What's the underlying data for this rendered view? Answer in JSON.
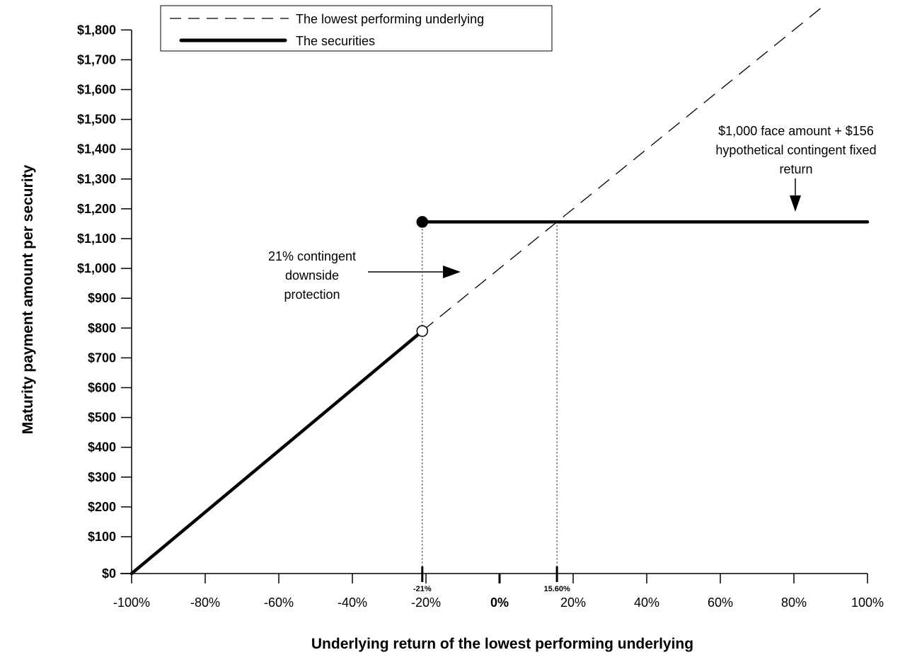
{
  "chart_data": {
    "type": "line",
    "xlabel": "Underlying return of the lowest performing underlying",
    "ylabel": "Maturity payment amount per security",
    "xlim": [
      -100,
      100
    ],
    "ylim": [
      0,
      1800
    ],
    "x_ticks": [
      -100,
      -80,
      -60,
      -40,
      -20,
      0,
      20,
      40,
      60,
      80,
      100
    ],
    "x_tick_labels": [
      "-100%",
      "-80%",
      "-60%",
      "-40%",
      "-20%",
      "0%",
      "20%",
      "40%",
      "60%",
      "80%",
      "100%"
    ],
    "y_ticks": [
      0,
      100,
      200,
      300,
      400,
      500,
      600,
      700,
      800,
      900,
      1000,
      1100,
      1200,
      1300,
      1400,
      1500,
      1600,
      1700,
      1800
    ],
    "y_tick_labels": [
      "$0",
      "$100",
      "$200",
      "$300",
      "$400",
      "$500",
      "$600",
      "$700",
      "$800",
      "$900",
      "$1,000",
      "$1,100",
      "$1,200",
      "$1,300",
      "$1,400",
      "$1,500",
      "$1,600",
      "$1,700",
      "$1,800"
    ],
    "special_x_ticks": [
      {
        "value": -21,
        "label": "-21%"
      },
      {
        "value": 15.6,
        "label": "15.60%"
      }
    ],
    "legend": {
      "placement": "top",
      "entries": [
        {
          "name": "The lowest performing underlying",
          "style": "dashed"
        },
        {
          "name": "The securities",
          "style": "solid-thick"
        }
      ]
    },
    "series": [
      {
        "name": "The lowest performing underlying",
        "x": [
          -21,
          88
        ],
        "y": [
          790,
          1880
        ]
      },
      {
        "name": "The securities",
        "segments": [
          {
            "x": [
              -100,
              -21
            ],
            "y": [
              0,
              790
            ]
          },
          {
            "x": [
              -21,
              100
            ],
            "y": [
              1156,
              1156
            ]
          }
        ]
      }
    ],
    "markers": [
      {
        "x": -21,
        "y": 790,
        "type": "open-circle"
      },
      {
        "x": -21,
        "y": 1156,
        "type": "filled-circle"
      }
    ],
    "annotations": [
      {
        "lines": [
          "21% contingent",
          "downside",
          "protection"
        ]
      },
      {
        "lines": [
          "$1,000 face amount + $156",
          "hypothetical contingent fixed",
          "return"
        ]
      }
    ],
    "grid": false
  }
}
